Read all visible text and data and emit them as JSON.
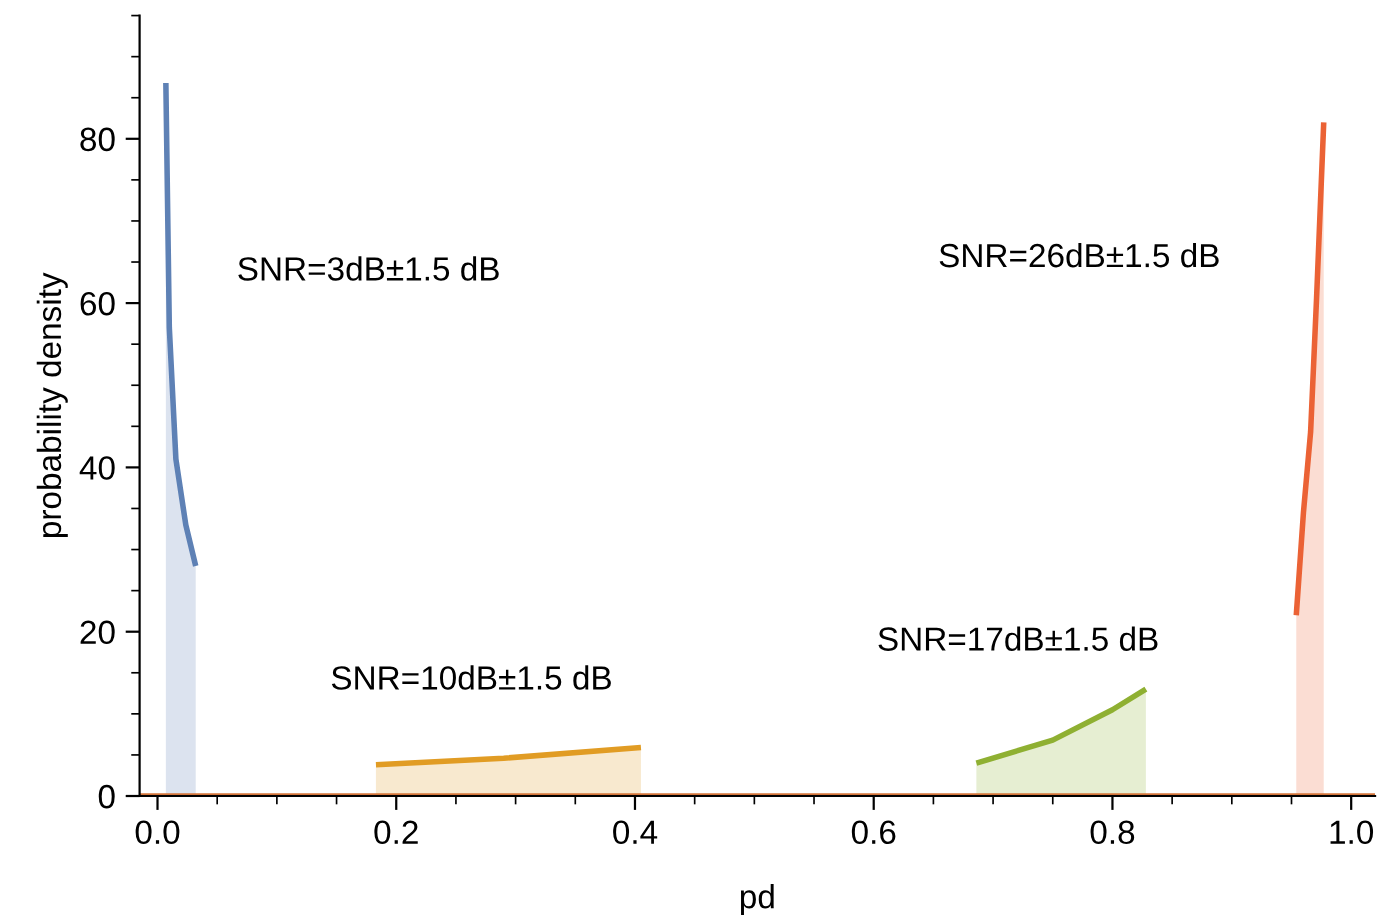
{
  "chart_data": {
    "type": "area",
    "xlabel": "pd",
    "ylabel": "probability density",
    "xlim": [
      -0.015,
      1.02
    ],
    "ylim": [
      0,
      95
    ],
    "xticks": [
      {
        "value": 0,
        "label": "0.0"
      },
      {
        "value": 0.2,
        "label": "0.2"
      },
      {
        "value": 0.4,
        "label": "0.4"
      },
      {
        "value": 0.6,
        "label": "0.6"
      },
      {
        "value": 0.8,
        "label": "0.8"
      },
      {
        "value": 1,
        "label": "1.0"
      }
    ],
    "yticks": [
      0,
      20,
      40,
      60,
      80
    ],
    "grid": false,
    "legend": false,
    "series": [
      {
        "type": "line",
        "color": "#d3743a",
        "x": [
          -0.015,
          1.02
        ],
        "values": [
          0,
          0
        ]
      },
      {
        "name": "SNR=3dB±1.5 dB",
        "color": "#5e81b5",
        "x": [
          0.007,
          0.0099,
          0.0154,
          0.0237,
          0.032
        ],
        "values": [
          86.8,
          57,
          41,
          33,
          28
        ]
      },
      {
        "name": "SNR=10dB±1.5 dB",
        "color": "#e19c24",
        "x": [
          0.183,
          0.29,
          0.405
        ],
        "values": [
          3.8,
          4.6,
          5.9
        ]
      },
      {
        "name": "SNR=17dB±1.5 dB",
        "color": "#8fb032",
        "x": [
          0.686,
          0.75,
          0.8,
          0.828
        ],
        "values": [
          4.0,
          6.8,
          10.5,
          13.0
        ]
      },
      {
        "name": "SNR=26dB±1.5 dB",
        "color": "#eb6235",
        "x": [
          0.954,
          0.96,
          0.966,
          0.971,
          0.977
        ],
        "values": [
          22,
          34.5,
          44.3,
          60.6,
          82
        ]
      }
    ]
  }
}
